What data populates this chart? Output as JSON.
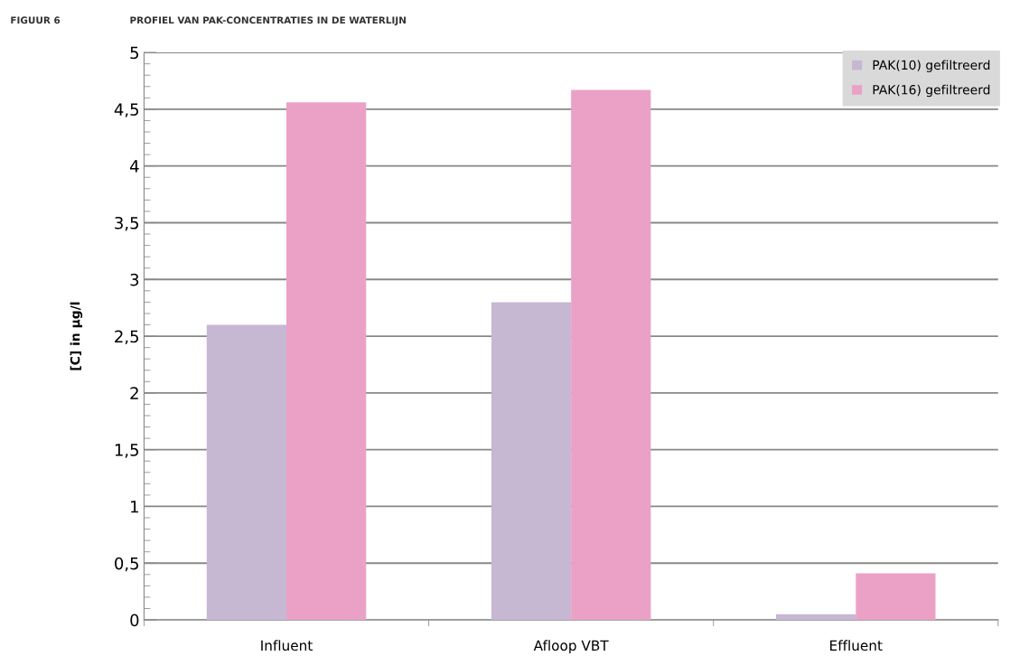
{
  "chart_data": {
    "type": "bar",
    "title": "PROFIEL VAN PAK-CONCENTRATIES IN DE WATERLIJN",
    "annotations": [
      "FIGUUR 6"
    ],
    "ylabel": "[C] in µg/l",
    "categories": [
      "Influent",
      "Afloop VBT",
      "Effluent"
    ],
    "series": [
      {
        "name": "PAK(10) gefiltreerd",
        "color": "#c6b7d3",
        "values": [
          2.6,
          2.8,
          0.05
        ]
      },
      {
        "name": "PAK(16) gefiltreerd",
        "color": "#eba1c6",
        "values": [
          4.56,
          4.67,
          0.41
        ]
      }
    ],
    "ylim": [
      0,
      5
    ],
    "yticks": [
      0,
      {
        "value": 0.5,
        "label": "0,5"
      },
      1,
      {
        "value": 1.5,
        "label": "1,5"
      },
      2,
      {
        "value": 2.5,
        "label": "2,5"
      },
      3,
      {
        "value": 3.5,
        "label": "3,5"
      },
      4,
      {
        "value": 4.5,
        "label": "4,5"
      },
      5
    ],
    "grid": "y",
    "legend": "top right"
  }
}
